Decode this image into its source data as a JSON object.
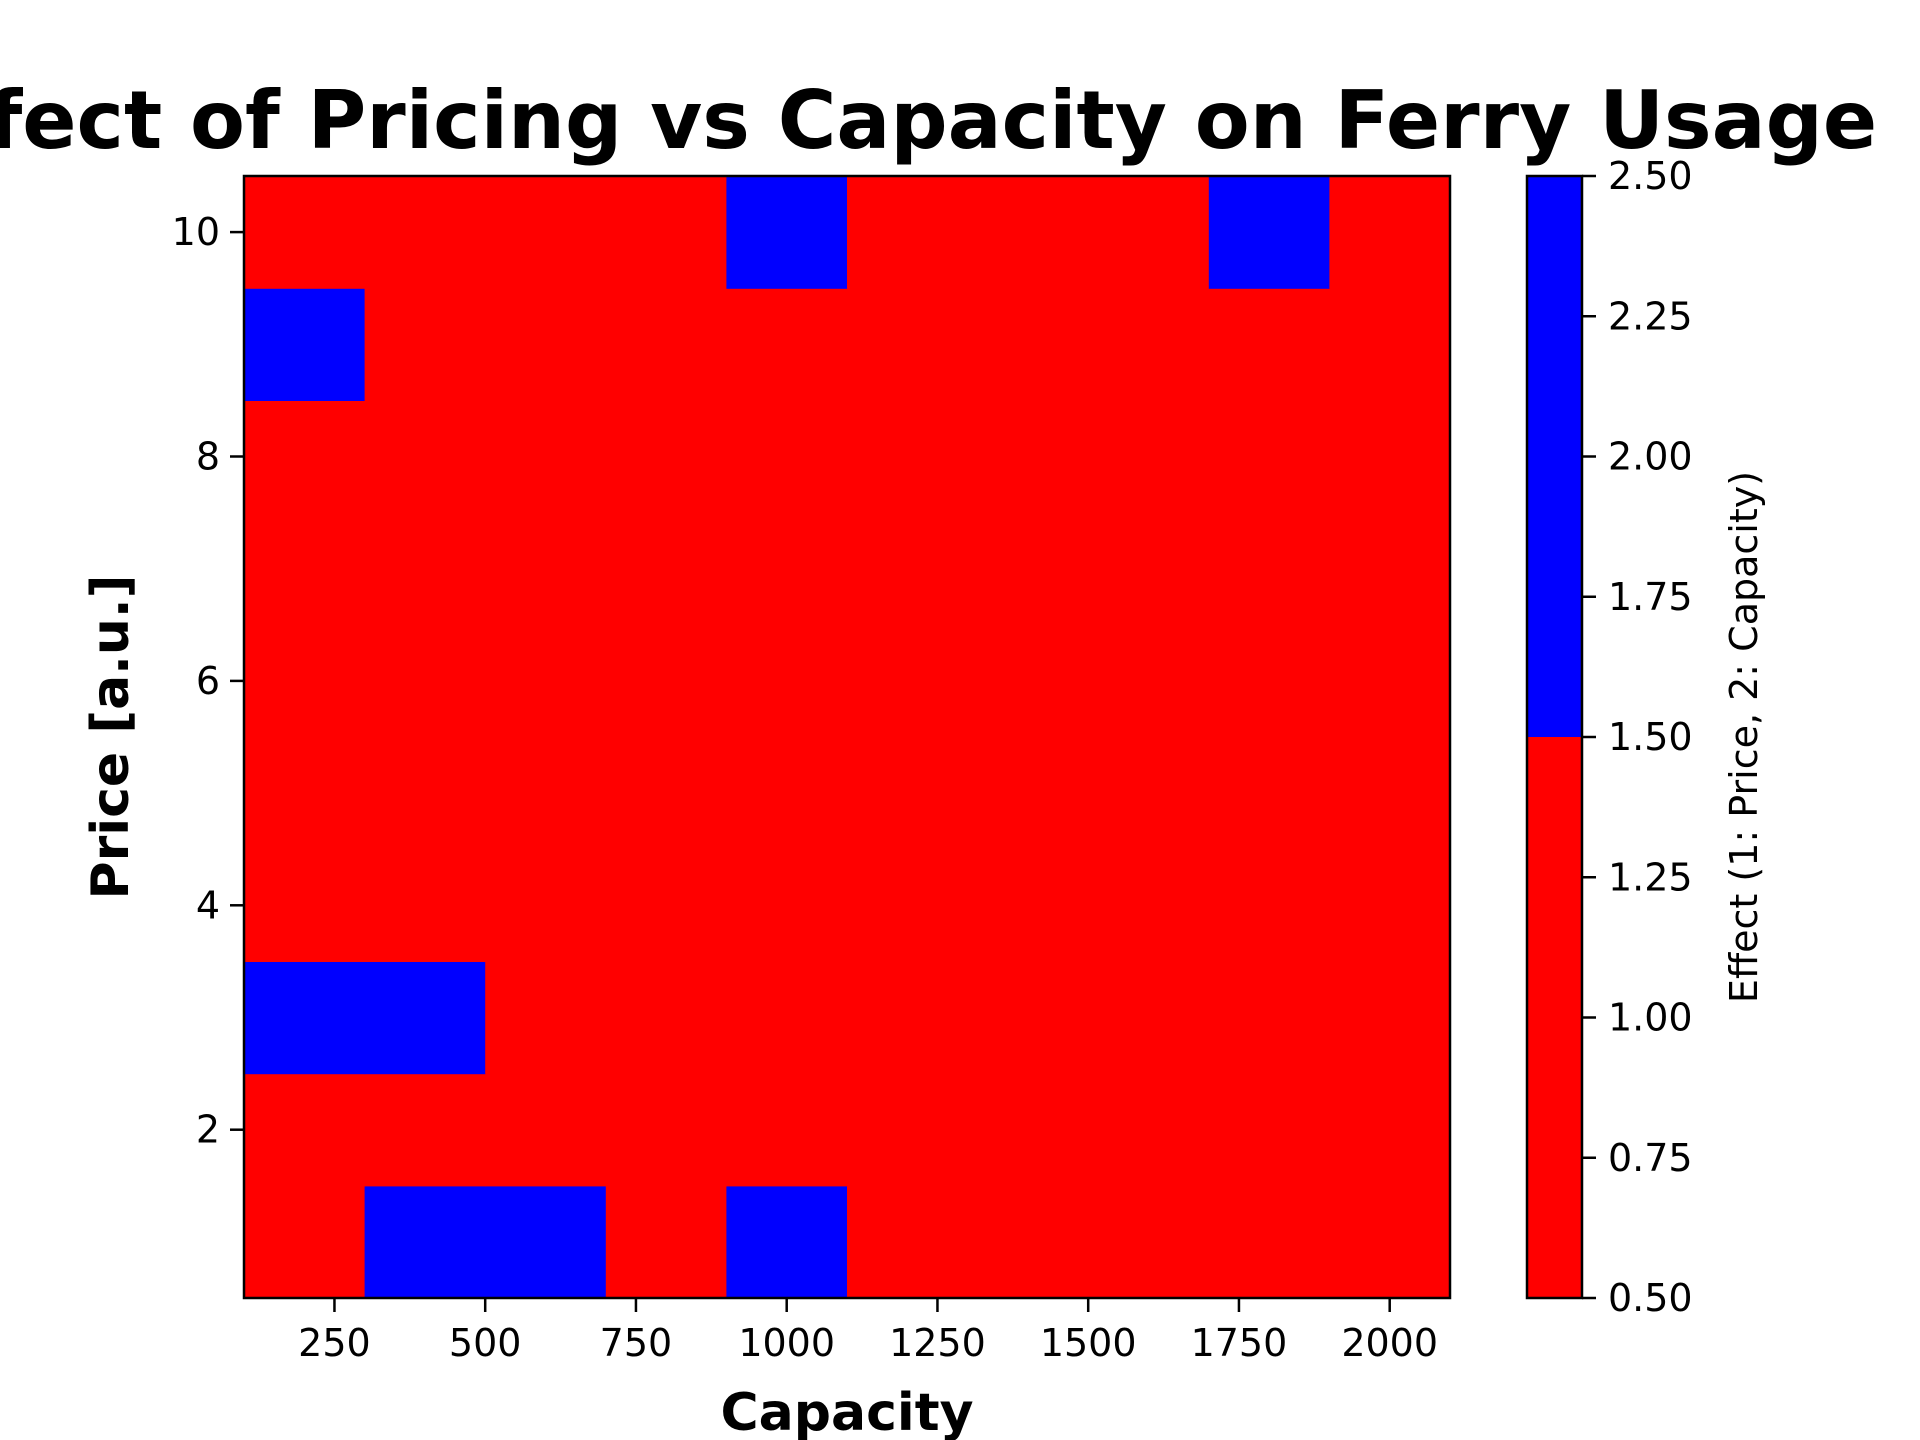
{
  "chart_data": {
    "type": "heatmap",
    "title": "Effect of Pricing vs Capacity on Ferry Usage",
    "xlabel": "Capacity",
    "ylabel": "Price [a.u.]",
    "x_categories": [
      200,
      400,
      600,
      800,
      1000,
      1200,
      1400,
      1600,
      1800,
      2000
    ],
    "y_categories": [
      1,
      2,
      3,
      4,
      5,
      6,
      7,
      8,
      9,
      10
    ],
    "x_ticks": [
      250,
      500,
      750,
      1000,
      1250,
      1500,
      1750,
      2000
    ],
    "y_ticks": [
      2,
      4,
      6,
      8,
      10
    ],
    "xlim": [
      100,
      2100
    ],
    "ylim": [
      0.5,
      10.5
    ],
    "values": [
      [
        1,
        2,
        2,
        1,
        2,
        1,
        1,
        1,
        1,
        1
      ],
      [
        1,
        1,
        1,
        1,
        1,
        1,
        1,
        1,
        1,
        1
      ],
      [
        2,
        2,
        1,
        1,
        1,
        1,
        1,
        1,
        1,
        1
      ],
      [
        1,
        1,
        1,
        1,
        1,
        1,
        1,
        1,
        1,
        1
      ],
      [
        1,
        1,
        1,
        1,
        1,
        1,
        1,
        1,
        1,
        1
      ],
      [
        1,
        1,
        1,
        1,
        1,
        1,
        1,
        1,
        1,
        1
      ],
      [
        1,
        1,
        1,
        1,
        1,
        1,
        1,
        1,
        1,
        1
      ],
      [
        1,
        1,
        1,
        1,
        1,
        1,
        1,
        1,
        1,
        1
      ],
      [
        2,
        1,
        1,
        1,
        1,
        1,
        1,
        1,
        1,
        1
      ],
      [
        1,
        1,
        1,
        1,
        2,
        1,
        1,
        1,
        2,
        1
      ]
    ],
    "colorbar": {
      "label": "Effect (1: Price, 2: Capacity)",
      "range": [
        0.5,
        2.5
      ],
      "ticks": [
        "0.50",
        "0.75",
        "1.00",
        "1.25",
        "1.50",
        "1.75",
        "2.00",
        "2.25",
        "2.50"
      ],
      "colors": [
        {
          "from": 0.5,
          "to": 1.5,
          "color": "#ff0000"
        },
        {
          "from": 1.5,
          "to": 2.5,
          "color": "#0000ff"
        }
      ]
    }
  }
}
